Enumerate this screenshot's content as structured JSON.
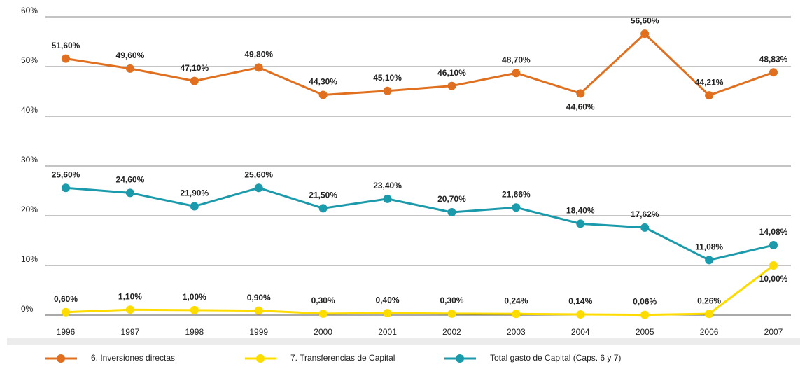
{
  "chart_data": {
    "type": "line",
    "categories": [
      "1996",
      "1997",
      "1998",
      "1999",
      "2000",
      "2001",
      "2002",
      "2003",
      "2004",
      "2005",
      "2006",
      "2007"
    ],
    "series": [
      {
        "name": "6. Inversiones directas",
        "color": "#e0701f",
        "values": [
          51.6,
          49.6,
          47.1,
          49.8,
          44.3,
          45.1,
          46.1,
          48.7,
          44.6,
          56.6,
          44.21,
          48.83
        ],
        "value_labels": [
          "51,60%",
          "49,60%",
          "47,10%",
          "49,80%",
          "44,30%",
          "45,10%",
          "46,10%",
          "48,70%",
          "44,60%",
          "56,60%",
          "44,21%",
          "48,83%"
        ]
      },
      {
        "name": "7. Transferencias de Capital",
        "color": "#ffdc00",
        "values": [
          0.6,
          1.1,
          1.0,
          0.9,
          0.3,
          0.4,
          0.3,
          0.24,
          0.14,
          0.06,
          0.26,
          10.0
        ],
        "value_labels": [
          "0,60%",
          "1,10%",
          "1,00%",
          "0,90%",
          "0,30%",
          "0,40%",
          "0,30%",
          "0,24%",
          "0,14%",
          "0,06%",
          "0,26%",
          "10,00%"
        ]
      },
      {
        "name": "Total gasto de Capital (Caps. 6 y 7)",
        "color": "#1b9aab",
        "values": [
          25.6,
          24.6,
          21.9,
          25.6,
          21.5,
          23.4,
          20.7,
          21.66,
          18.4,
          17.62,
          11.08,
          14.08
        ],
        "value_labels": [
          "25,60%",
          "24,60%",
          "21,90%",
          "25,60%",
          "21,50%",
          "23,40%",
          "20,70%",
          "21,66%",
          "18,40%",
          "17,62%",
          "11,08%",
          "14,08%"
        ]
      }
    ],
    "ylim": [
      0,
      60
    ],
    "yticks": [
      {
        "value": 0,
        "label": "0%"
      },
      {
        "value": 10,
        "label": "10%"
      },
      {
        "value": 20,
        "label": "20%"
      },
      {
        "value": 30,
        "label": "30%"
      },
      {
        "value": 40,
        "label": "40%"
      },
      {
        "value": 50,
        "label": "50%"
      },
      {
        "value": 60,
        "label": "60%"
      }
    ],
    "grid": true,
    "legend": "bottom"
  }
}
